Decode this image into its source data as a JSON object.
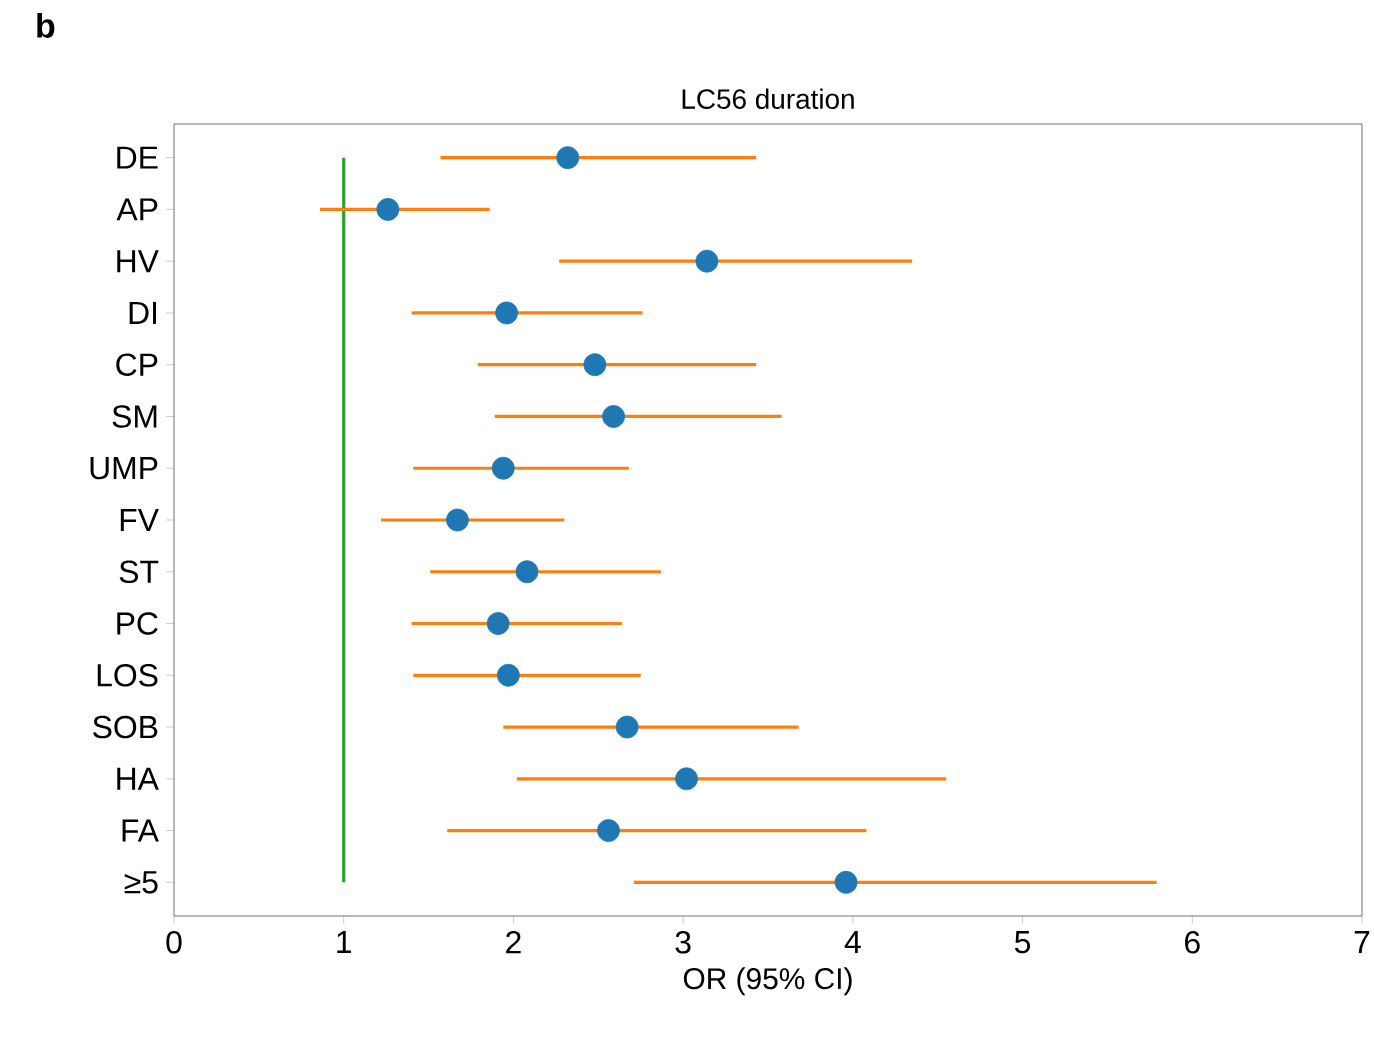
{
  "chart_data": {
    "type": "scatter",
    "title": "LC56 duration",
    "xlabel": "OR (95% CI)",
    "annotations": [
      "b"
    ],
    "orientation": "horizontal",
    "color": "#1f77b4",
    "categories": [
      "DE",
      "AP",
      "HV",
      "DI",
      "CP",
      "SM",
      "UMP",
      "FV",
      "ST",
      "PC",
      "LOS",
      "SOB",
      "HA",
      "FA",
      "≥5"
    ],
    "values": [
      2.32,
      1.26,
      3.14,
      1.96,
      2.48,
      2.59,
      1.94,
      1.67,
      2.08,
      1.91,
      1.97,
      2.67,
      3.02,
      2.56,
      3.96
    ],
    "errors": [
      [
        1.57,
        3.43
      ],
      [
        0.86,
        1.86
      ],
      [
        2.27,
        4.35
      ],
      [
        1.4,
        2.76
      ],
      [
        1.79,
        3.43
      ],
      [
        1.89,
        3.58
      ],
      [
        1.41,
        2.68
      ],
      [
        1.22,
        2.3
      ],
      [
        1.51,
        2.87
      ],
      [
        1.4,
        2.64
      ],
      [
        1.41,
        2.75
      ],
      [
        1.94,
        3.68
      ],
      [
        2.02,
        4.55
      ],
      [
        1.61,
        4.08
      ],
      [
        2.71,
        5.79
      ]
    ],
    "xlim": [
      0,
      7
    ],
    "xticks": [
      0,
      1,
      2,
      3,
      4,
      5,
      6,
      7
    ],
    "ref_lines": [
      {
        "axis": "x",
        "value": 1,
        "color": "#2ca02c"
      }
    ]
  }
}
